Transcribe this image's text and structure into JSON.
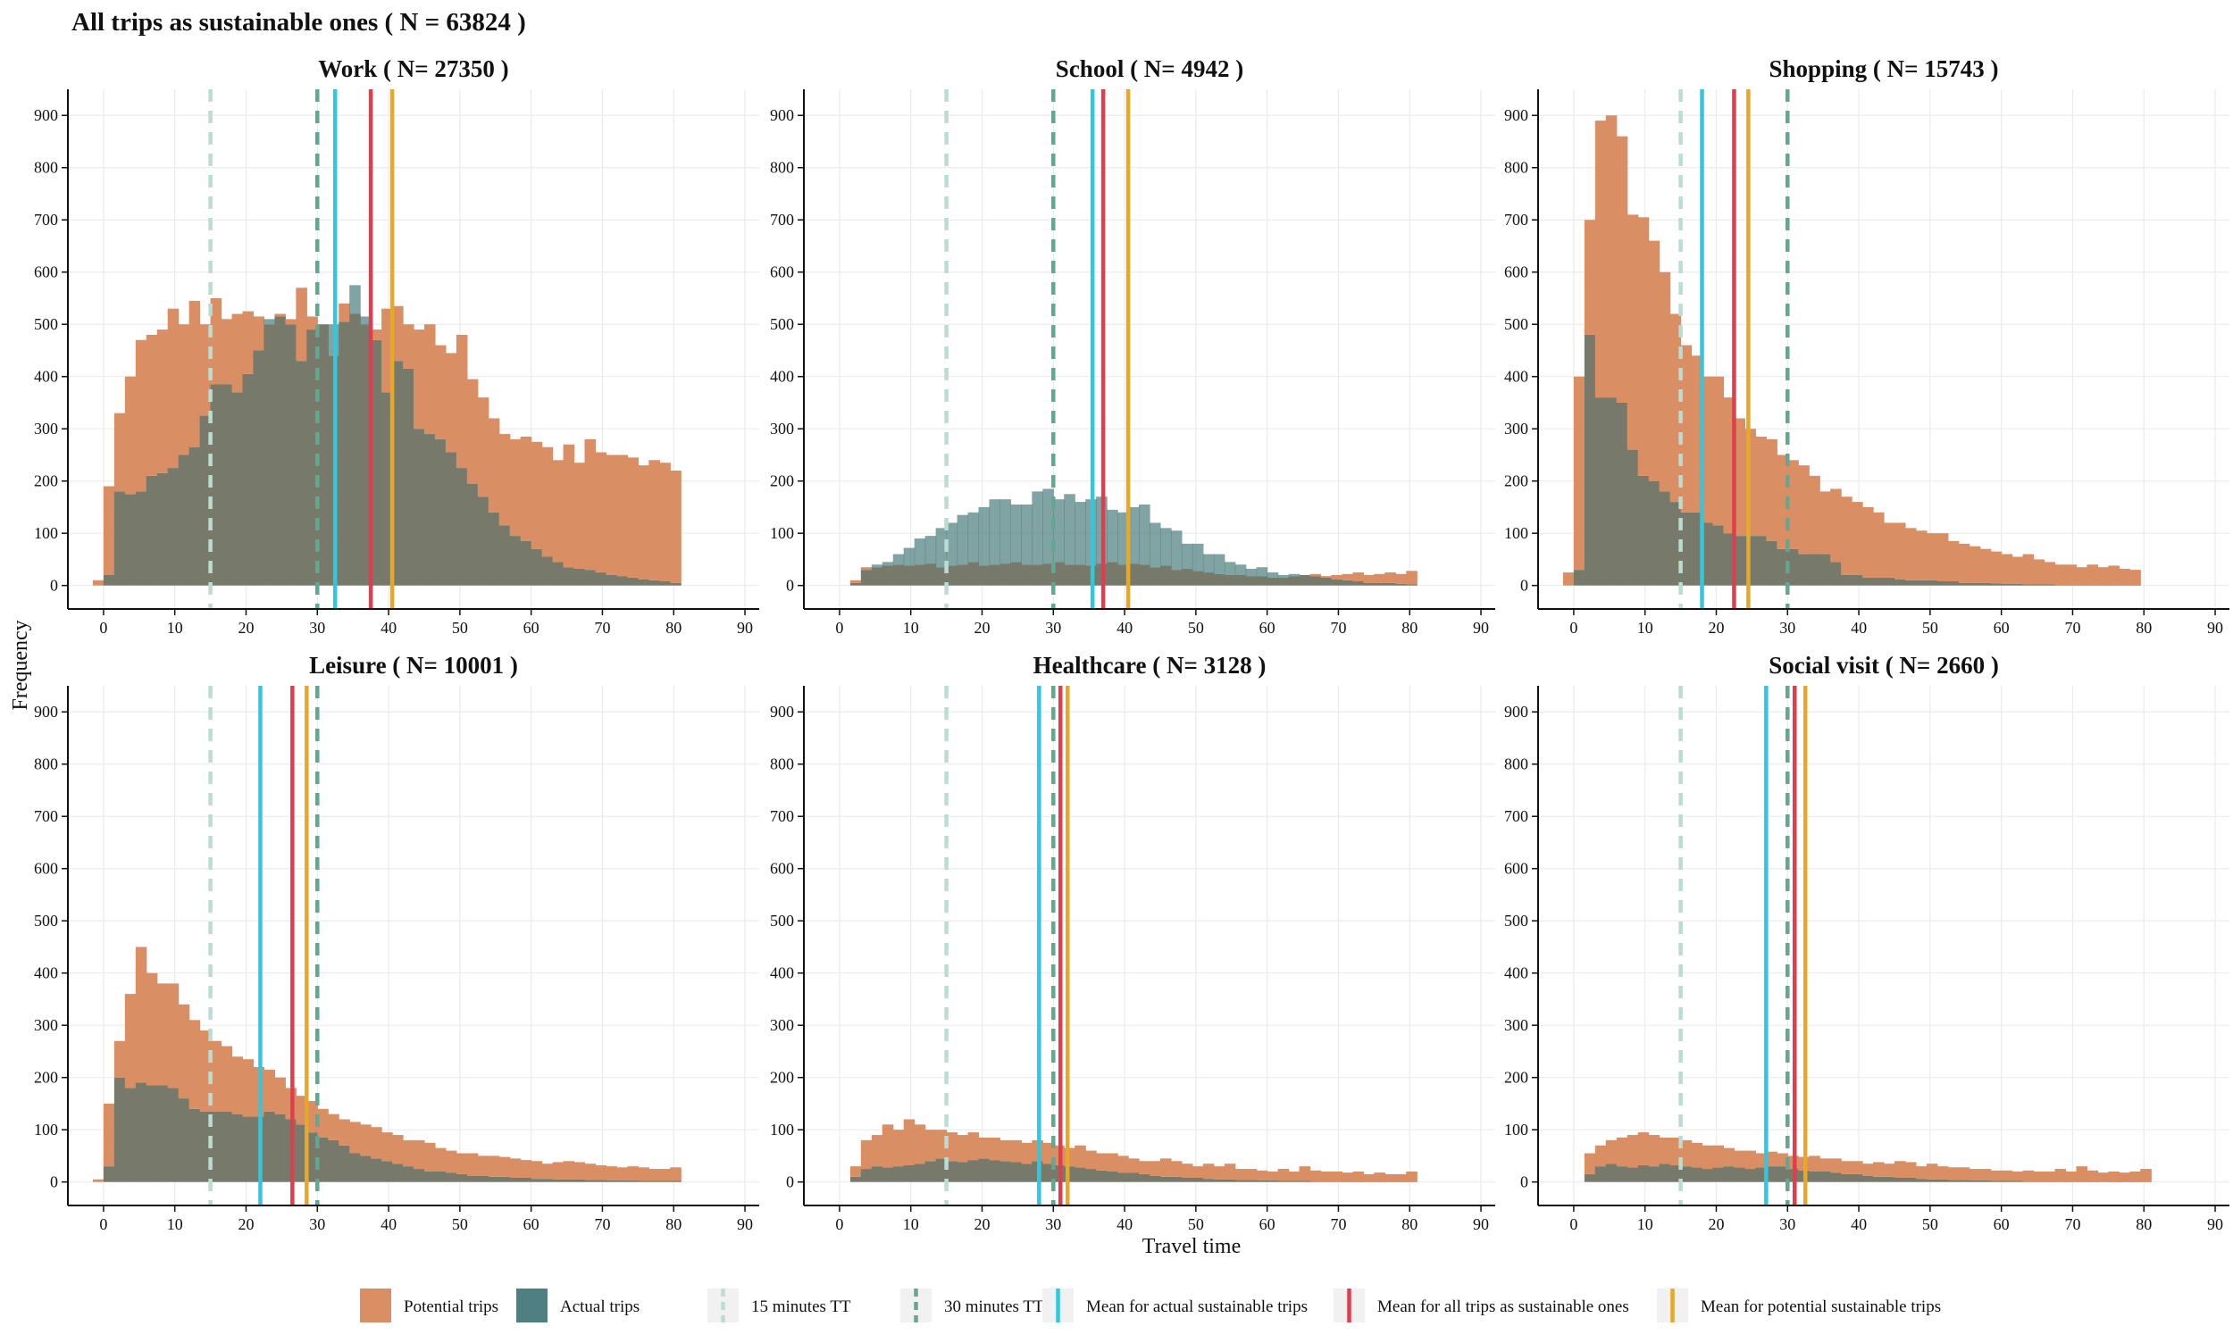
{
  "chart_data": {
    "type": "bar",
    "title": "All trips as sustainable ones ( N = 63824 )",
    "xlabel": "Travel time",
    "ylabel": "Frequency",
    "x_ticks": [
      0,
      10,
      20,
      30,
      40,
      50,
      60,
      70,
      80,
      90
    ],
    "y_ticks": [
      0,
      100,
      200,
      300,
      400,
      500,
      600,
      700,
      800,
      900
    ],
    "xlim": [
      -5,
      92
    ],
    "ylim": [
      -45,
      950
    ],
    "bin_width": 1.5,
    "grid": true,
    "legend_position": "bottom",
    "colors": {
      "potential": "#d98e63",
      "actual": "#4f7f80",
      "overlap": "#777a6b",
      "line_15": "#b8ddd2",
      "line_30": "#5ea894",
      "mean_actual": "#2ec9e0",
      "mean_all": "#e03e4e",
      "mean_potential": "#e7a826"
    },
    "legend": [
      {
        "label": "Potential trips",
        "type": "fill",
        "color": "#d98e63"
      },
      {
        "label": "Actual trips",
        "type": "fill",
        "color": "#4f7f80"
      },
      {
        "label": "15 minutes TT",
        "type": "dashed",
        "color": "#b8ddd2"
      },
      {
        "label": "30 minutes TT",
        "type": "dashed",
        "color": "#5ea894"
      },
      {
        "label": "Mean for actual sustainable trips",
        "type": "solid",
        "color": "#2ec9e0"
      },
      {
        "label": "Mean for all trips as sustainable ones",
        "type": "solid",
        "color": "#e03e4e"
      },
      {
        "label": "Mean for potential sustainable trips",
        "type": "solid",
        "color": "#e7a826"
      }
    ],
    "panels": [
      {
        "title": "Work ( N= 27350 )",
        "x_start": -1.5,
        "potential": [
          10,
          190,
          330,
          400,
          470,
          480,
          490,
          530,
          500,
          545,
          500,
          550,
          510,
          520,
          525,
          515,
          500,
          520,
          510,
          570,
          515,
          500,
          440,
          540,
          520,
          500,
          490,
          530,
          535,
          500,
          490,
          500,
          460,
          445,
          480,
          395,
          360,
          320,
          290,
          280,
          285,
          275,
          265,
          240,
          270,
          235,
          280,
          255,
          250,
          250,
          245,
          230,
          240,
          235,
          220
        ],
        "actual": [
          0,
          20,
          180,
          175,
          180,
          210,
          215,
          225,
          250,
          265,
          325,
          385,
          385,
          370,
          405,
          450,
          510,
          515,
          500,
          430,
          490,
          500,
          500,
          505,
          575,
          515,
          470,
          370,
          430,
          415,
          300,
          290,
          280,
          255,
          225,
          195,
          170,
          140,
          115,
          95,
          85,
          70,
          55,
          45,
          35,
          32,
          30,
          25,
          20,
          18,
          15,
          12,
          10,
          8,
          5
        ],
        "mean_actual": 32.5,
        "mean_all": 37.5,
        "mean_potential": 40.5
      },
      {
        "title": "School ( N= 4942 )",
        "x_start": 1.5,
        "potential": [
          10,
          35,
          35,
          38,
          40,
          38,
          40,
          42,
          35,
          38,
          40,
          45,
          38,
          40,
          42,
          45,
          40,
          40,
          42,
          45,
          40,
          40,
          38,
          42,
          45,
          40,
          42,
          40,
          35,
          38,
          30,
          32,
          28,
          25,
          22,
          20,
          20,
          18,
          18,
          15,
          15,
          18,
          20,
          22,
          18,
          20,
          22,
          25,
          20,
          22,
          25,
          22,
          28
        ],
        "actual": [
          5,
          30,
          40,
          45,
          60,
          72,
          90,
          95,
          110,
          120,
          135,
          140,
          150,
          165,
          165,
          155,
          155,
          180,
          185,
          165,
          175,
          160,
          165,
          170,
          145,
          140,
          150,
          155,
          120,
          110,
          105,
          80,
          80,
          60,
          60,
          45,
          40,
          32,
          35,
          25,
          20,
          22,
          20,
          18,
          15,
          12,
          10,
          8,
          5,
          5,
          5,
          3,
          2
        ],
        "mean_actual": 35.5,
        "mean_all": 37,
        "mean_potential": 40.5
      },
      {
        "title": "Shopping ( N= 15743 )",
        "x_start": -1.5,
        "potential": [
          25,
          400,
          700,
          890,
          900,
          860,
          710,
          705,
          660,
          600,
          520,
          460,
          440,
          400,
          400,
          360,
          320,
          300,
          285,
          280,
          250,
          240,
          230,
          210,
          180,
          185,
          170,
          160,
          150,
          140,
          120,
          120,
          110,
          105,
          100,
          100,
          85,
          80,
          75,
          70,
          65,
          60,
          55,
          60,
          50,
          45,
          40,
          40,
          35,
          40,
          35,
          38,
          32,
          30
        ],
        "actual": [
          0,
          30,
          480,
          360,
          360,
          350,
          260,
          210,
          200,
          180,
          160,
          140,
          140,
          120,
          115,
          100,
          95,
          95,
          95,
          85,
          70,
          70,
          60,
          60,
          60,
          45,
          20,
          20,
          15,
          15,
          15,
          12,
          10,
          10,
          10,
          8,
          8,
          5,
          5,
          5,
          4,
          3,
          3,
          2,
          2,
          2,
          1,
          1,
          1,
          1,
          1,
          1,
          1,
          1
        ],
        "mean_actual": 18,
        "mean_all": 22.5,
        "mean_potential": 24.5
      },
      {
        "title": "Leisure ( N= 10001 )",
        "x_start": -1.5,
        "potential": [
          5,
          150,
          270,
          360,
          450,
          400,
          380,
          380,
          340,
          310,
          290,
          270,
          260,
          240,
          235,
          220,
          215,
          200,
          180,
          165,
          155,
          140,
          130,
          120,
          115,
          110,
          105,
          95,
          90,
          80,
          80,
          75,
          65,
          60,
          55,
          55,
          50,
          50,
          48,
          45,
          42,
          40,
          35,
          38,
          40,
          38,
          35,
          32,
          30,
          28,
          30,
          28,
          25,
          25,
          28
        ],
        "actual": [
          0,
          30,
          200,
          180,
          190,
          185,
          185,
          180,
          160,
          140,
          135,
          135,
          135,
          130,
          125,
          125,
          135,
          130,
          120,
          110,
          95,
          85,
          80,
          70,
          55,
          50,
          45,
          40,
          35,
          30,
          25,
          20,
          20,
          18,
          15,
          12,
          12,
          10,
          10,
          8,
          8,
          6,
          6,
          5,
          5,
          5,
          4,
          4,
          3,
          3,
          3,
          2,
          2,
          2,
          2
        ],
        "mean_actual": 22,
        "mean_all": 26.5,
        "mean_potential": 28.5
      },
      {
        "title": "Healthcare ( N= 3128 )",
        "x_start": 1.5,
        "potential": [
          30,
          80,
          90,
          110,
          100,
          120,
          110,
          100,
          100,
          95,
          90,
          95,
          85,
          85,
          80,
          80,
          75,
          80,
          75,
          70,
          65,
          70,
          60,
          55,
          55,
          50,
          45,
          40,
          40,
          45,
          40,
          35,
          30,
          35,
          30,
          35,
          25,
          25,
          22,
          20,
          25,
          20,
          30,
          22,
          20,
          20,
          18,
          20,
          15,
          18,
          15,
          15,
          20
        ],
        "actual": [
          10,
          25,
          30,
          28,
          30,
          32,
          35,
          40,
          45,
          40,
          38,
          42,
          45,
          42,
          40,
          38,
          35,
          40,
          35,
          32,
          30,
          28,
          25,
          22,
          20,
          18,
          18,
          15,
          12,
          10,
          10,
          8,
          8,
          6,
          5,
          5,
          4,
          4,
          3,
          3,
          2,
          2,
          2,
          1,
          1,
          1,
          1,
          1,
          1,
          1,
          1,
          1,
          1
        ],
        "mean_actual": 28,
        "mean_all": 31,
        "mean_potential": 32
      },
      {
        "title": "Social visit ( N= 2660 )",
        "x_start": 1.5,
        "potential": [
          55,
          70,
          80,
          85,
          90,
          95,
          90,
          85,
          85,
          80,
          75,
          70,
          70,
          65,
          60,
          60,
          55,
          58,
          55,
          50,
          48,
          50,
          45,
          45,
          40,
          40,
          35,
          38,
          35,
          40,
          38,
          30,
          35,
          30,
          28,
          28,
          25,
          25,
          22,
          22,
          20,
          22,
          20,
          20,
          25,
          20,
          30,
          22,
          18,
          20,
          18,
          20,
          25
        ],
        "actual": [
          15,
          30,
          35,
          30,
          28,
          32,
          30,
          35,
          32,
          30,
          28,
          25,
          28,
          30,
          28,
          25,
          28,
          30,
          30,
          25,
          22,
          20,
          20,
          18,
          15,
          15,
          12,
          10,
          10,
          8,
          8,
          6,
          5,
          5,
          4,
          4,
          3,
          3,
          2,
          2,
          2,
          1,
          1,
          1,
          1,
          1,
          1,
          1,
          1,
          1,
          1,
          1,
          1
        ],
        "mean_actual": 27,
        "mean_all": 31,
        "mean_potential": 32.5
      }
    ]
  }
}
